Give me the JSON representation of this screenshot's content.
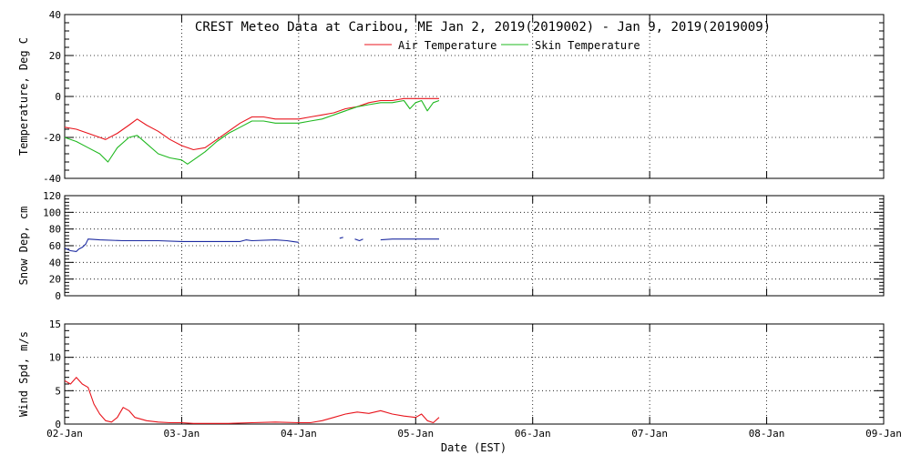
{
  "page": {
    "title": "CREST Meteo Data at Caribou, ME   Jan  2, 2019(2019002) - Jan  9, 2019(2019009)",
    "xlabel": "Date (EST)"
  },
  "colors": {
    "air": "#e8141c",
    "skin": "#1fb81f",
    "snow": "#1c2aa0",
    "wind": "#e8141c",
    "frame": "#000000",
    "grid": "#000000"
  },
  "chart_data": [
    {
      "type": "line",
      "id": "temperature",
      "ylabel": "Temperature, Deg C",
      "ylim": [
        -40,
        40
      ],
      "yticks": [
        "-40",
        "-20",
        "0",
        "20",
        "40"
      ],
      "xlim": [
        0,
        7
      ],
      "categories": [
        "02-Jan",
        "03-Jan",
        "04-Jan",
        "05-Jan",
        "06-Jan",
        "07-Jan",
        "08-Jan",
        "09-Jan"
      ],
      "grid": true,
      "legend": "top-center",
      "series": [
        {
          "name": "Air Temperature",
          "color": "#e8141c",
          "x": [
            0,
            0.1,
            0.2,
            0.3,
            0.35,
            0.45,
            0.55,
            0.62,
            0.7,
            0.8,
            0.9,
            1.0,
            1.1,
            1.2,
            1.3,
            1.4,
            1.5,
            1.6,
            1.7,
            1.8,
            1.9,
            2.0,
            2.1,
            2.2,
            2.3,
            2.4,
            2.5,
            2.6,
            2.7,
            2.8,
            2.9,
            3.0,
            3.1,
            3.2
          ],
          "y": [
            -15,
            -16,
            -18,
            -20,
            -21,
            -18,
            -14,
            -11,
            -14,
            -17,
            -21,
            -24,
            -26,
            -25,
            -21,
            -17,
            -13,
            -10,
            -10,
            -11,
            -11,
            -11,
            -10,
            -9,
            -8,
            -6,
            -5,
            -3,
            -2,
            -2,
            -1,
            -1,
            -1,
            -1
          ]
        },
        {
          "name": "Skin Temperature",
          "color": "#1fb81f",
          "x": [
            0,
            0.1,
            0.2,
            0.3,
            0.37,
            0.45,
            0.55,
            0.62,
            0.7,
            0.8,
            0.9,
            1.0,
            1.05,
            1.1,
            1.2,
            1.3,
            1.4,
            1.5,
            1.6,
            1.7,
            1.8,
            1.9,
            2.0,
            2.1,
            2.2,
            2.3,
            2.4,
            2.5,
            2.6,
            2.7,
            2.8,
            2.9,
            2.95,
            3.0,
            3.05,
            3.1,
            3.15,
            3.2
          ],
          "y": [
            -20,
            -22,
            -25,
            -28,
            -32,
            -25,
            -20,
            -19,
            -23,
            -28,
            -30,
            -31,
            -33,
            -31,
            -27,
            -22,
            -18,
            -15,
            -12,
            -12,
            -13,
            -13,
            -13,
            -12,
            -11,
            -9,
            -7,
            -5,
            -4,
            -3,
            -3,
            -2,
            -6,
            -3,
            -2,
            -7,
            -3,
            -2
          ]
        }
      ]
    },
    {
      "type": "line",
      "id": "snow-depth",
      "ylabel": "Snow Dep, cm",
      "ylim": [
        0,
        120
      ],
      "yticks": [
        "0",
        "20",
        "40",
        "60",
        "80",
        "100",
        "120"
      ],
      "xlim": [
        0,
        7
      ],
      "categories": [
        "02-Jan",
        "03-Jan",
        "04-Jan",
        "05-Jan",
        "06-Jan",
        "07-Jan",
        "08-Jan",
        "09-Jan"
      ],
      "grid": true,
      "series": [
        {
          "name": "",
          "color": "#1c2aa0",
          "segments": [
            {
              "x": [
                0,
                0.05,
                0.1,
                0.12,
                0.15,
                0.18,
                0.2,
                0.3,
                0.5,
                0.8,
                1.0,
                1.3,
                1.5,
                1.55,
                1.6,
                1.8,
                1.9,
                1.95,
                2.0
              ],
              "y": [
                57,
                54,
                53,
                56,
                58,
                62,
                68,
                67,
                66,
                66,
                65,
                65,
                65,
                67,
                66,
                67,
                66,
                65,
                64
              ]
            },
            {
              "x": [
                2.35,
                2.38
              ],
              "y": [
                69,
                70
              ]
            },
            {
              "x": [
                2.48,
                2.52,
                2.55
              ],
              "y": [
                68,
                66,
                68
              ]
            },
            {
              "x": [
                2.7,
                2.8,
                3.0,
                3.2
              ],
              "y": [
                67,
                68,
                68,
                68
              ]
            }
          ]
        }
      ]
    },
    {
      "type": "line",
      "id": "wind-speed",
      "ylabel": "Wind Spd, m/s",
      "ylim": [
        0,
        15
      ],
      "yticks": [
        "0",
        "5",
        "10",
        "15"
      ],
      "xlim": [
        0,
        7
      ],
      "categories": [
        "02-Jan",
        "03-Jan",
        "04-Jan",
        "05-Jan",
        "06-Jan",
        "07-Jan",
        "08-Jan",
        "09-Jan"
      ],
      "grid": true,
      "series": [
        {
          "name": "",
          "color": "#e8141c",
          "x": [
            0,
            0.05,
            0.1,
            0.15,
            0.2,
            0.25,
            0.3,
            0.35,
            0.4,
            0.45,
            0.5,
            0.55,
            0.6,
            0.7,
            0.8,
            0.9,
            1.0,
            1.1,
            1.2,
            1.4,
            1.6,
            1.8,
            2.0,
            2.1,
            2.2,
            2.3,
            2.4,
            2.5,
            2.6,
            2.7,
            2.8,
            2.9,
            3.0,
            3.05,
            3.1,
            3.15,
            3.2
          ],
          "y": [
            6.5,
            6,
            7,
            6,
            5.5,
            3,
            1.5,
            0.5,
            0.3,
            1,
            2.5,
            2,
            1,
            0.5,
            0.3,
            0.2,
            0.2,
            0.1,
            0.1,
            0.1,
            0.2,
            0.3,
            0.2,
            0.2,
            0.5,
            1,
            1.5,
            1.8,
            1.6,
            2,
            1.5,
            1.2,
            1,
            1.5,
            0.5,
            0.2,
            1
          ]
        }
      ]
    }
  ]
}
